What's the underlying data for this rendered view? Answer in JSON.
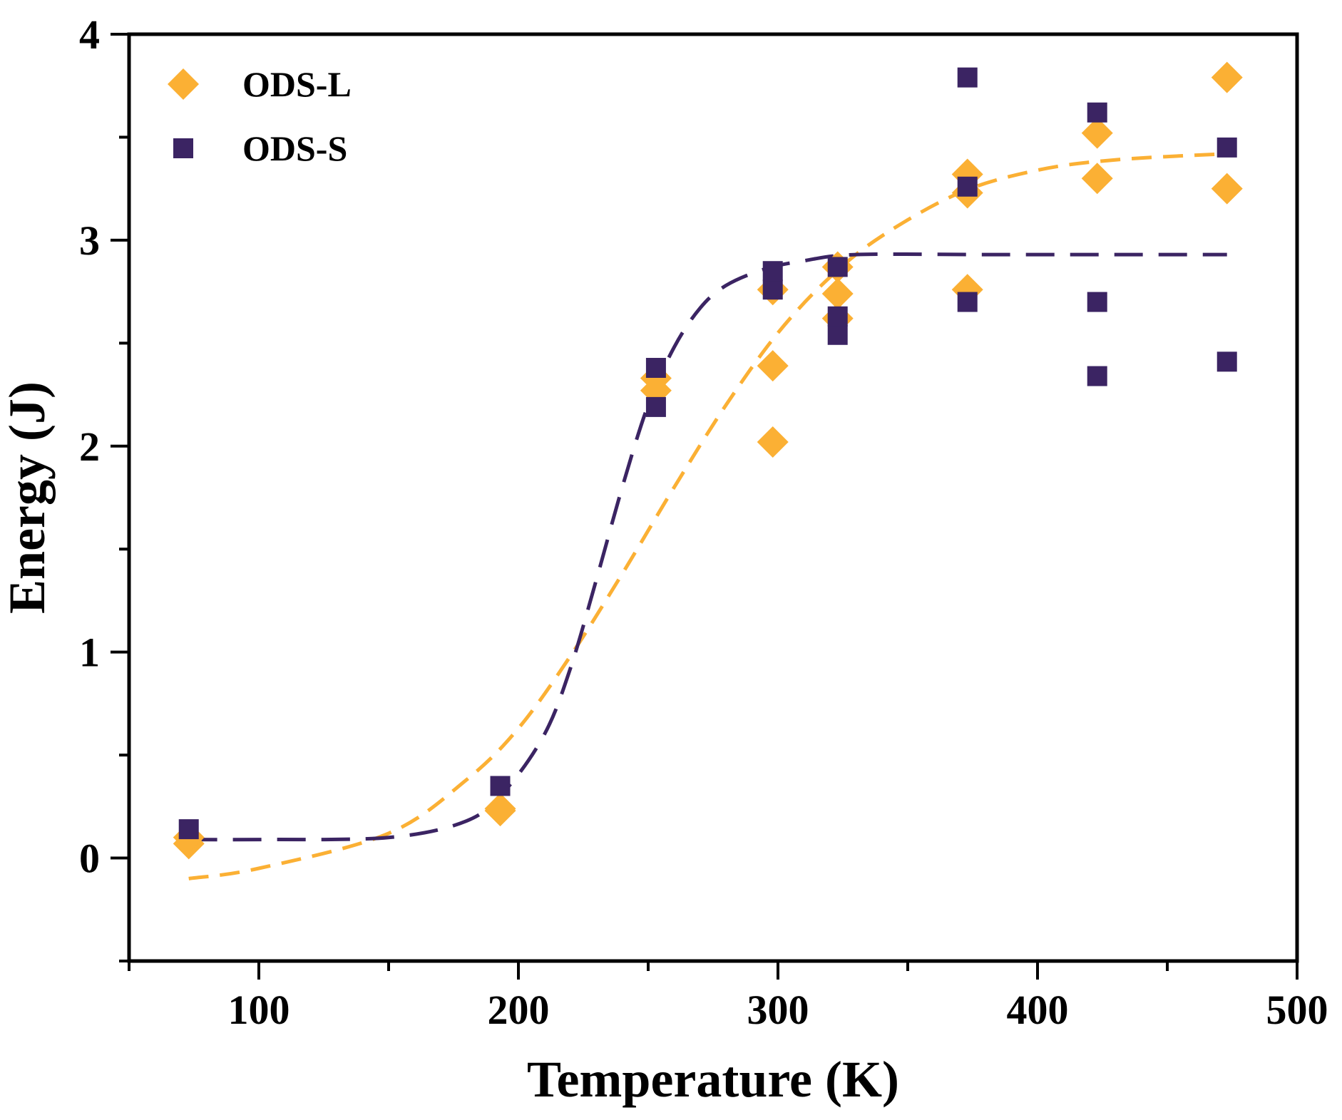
{
  "chart_data": {
    "type": "scatter",
    "title": "",
    "xlabel": "Temperature (K)",
    "ylabel": "Energy (J)",
    "xlim": [
      50,
      500
    ],
    "ylim": [
      -0.5,
      4
    ],
    "x_ticks": [
      100,
      200,
      300,
      400,
      500
    ],
    "x_tick_labels": [
      "100",
      "200",
      "300",
      "400",
      "500"
    ],
    "y_ticks": [
      0,
      1,
      2,
      3,
      4
    ],
    "y_tick_labels": [
      "0",
      "1",
      "2",
      "3",
      "4"
    ],
    "grid": false,
    "legend_position": "top-left",
    "series": [
      {
        "name": "ODS-L",
        "marker": "diamond",
        "color": "#FBB034",
        "points": [
          [
            73,
            0.07
          ],
          [
            73,
            0.1
          ],
          [
            193,
            0.23
          ],
          [
            193,
            0.24
          ],
          [
            253,
            2.27
          ],
          [
            253,
            2.33
          ],
          [
            298,
            2.02
          ],
          [
            298,
            2.39
          ],
          [
            298,
            2.76
          ],
          [
            323,
            2.62
          ],
          [
            323,
            2.74
          ],
          [
            323,
            2.87
          ],
          [
            373,
            2.76
          ],
          [
            373,
            3.23
          ],
          [
            373,
            3.32
          ],
          [
            423,
            3.3
          ],
          [
            423,
            3.52
          ],
          [
            473,
            3.25
          ],
          [
            473,
            3.79
          ]
        ],
        "fit": {
          "style": "dashed",
          "x": [
            73,
            100,
            150,
            180,
            200,
            220,
            240,
            260,
            280,
            300,
            320,
            340,
            370,
            400,
            430,
            473
          ],
          "y": [
            -0.1,
            -0.05,
            0.12,
            0.38,
            0.63,
            0.98,
            1.38,
            1.8,
            2.2,
            2.55,
            2.82,
            3.02,
            3.23,
            3.34,
            3.39,
            3.42
          ]
        }
      },
      {
        "name": "ODS-S",
        "marker": "square",
        "color": "#3B2463",
        "points": [
          [
            73,
            0.14
          ],
          [
            193,
            0.35
          ],
          [
            253,
            2.19
          ],
          [
            253,
            2.38
          ],
          [
            298,
            2.76
          ],
          [
            298,
            2.85
          ],
          [
            323,
            2.54
          ],
          [
            323,
            2.63
          ],
          [
            323,
            2.87
          ],
          [
            373,
            2.7
          ],
          [
            373,
            3.26
          ],
          [
            373,
            3.79
          ],
          [
            423,
            2.34
          ],
          [
            423,
            2.7
          ],
          [
            423,
            3.62
          ],
          [
            473,
            2.41
          ],
          [
            473,
            3.45
          ]
        ],
        "fit": {
          "style": "dashed",
          "x": [
            73,
            100,
            150,
            180,
            195,
            210,
            220,
            230,
            240,
            250,
            260,
            270,
            280,
            295,
            310,
            330,
            380,
            430,
            473
          ],
          "y": [
            0.09,
            0.09,
            0.1,
            0.18,
            0.33,
            0.6,
            0.92,
            1.35,
            1.8,
            2.2,
            2.48,
            2.67,
            2.78,
            2.86,
            2.9,
            2.93,
            2.93,
            2.93,
            2.93
          ]
        }
      }
    ]
  }
}
